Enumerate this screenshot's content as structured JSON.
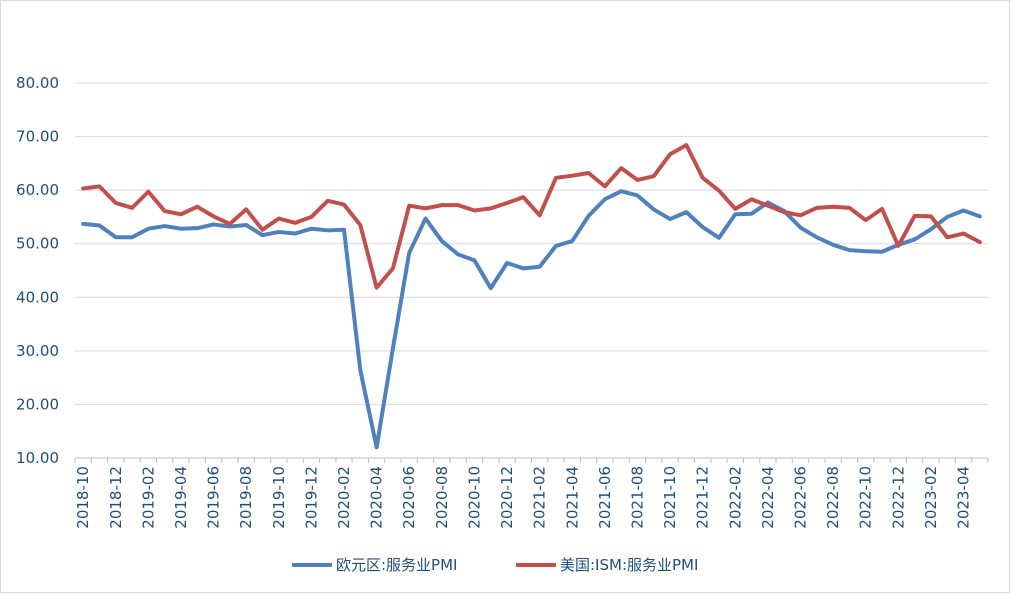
{
  "chart_data": {
    "type": "line",
    "title": "",
    "xlabel": "",
    "ylabel": "",
    "ylim": [
      10,
      80
    ],
    "y_ticks": [
      "10.00",
      "20.00",
      "30.00",
      "40.00",
      "50.00",
      "60.00",
      "70.00",
      "80.00"
    ],
    "x": [
      "2018-10",
      "2018-11",
      "2018-12",
      "2019-01",
      "2019-02",
      "2019-03",
      "2019-04",
      "2019-05",
      "2019-06",
      "2019-07",
      "2019-08",
      "2019-09",
      "2019-10",
      "2019-11",
      "2019-12",
      "2020-01",
      "2020-02",
      "2020-03",
      "2020-04",
      "2020-05",
      "2020-06",
      "2020-07",
      "2020-08",
      "2020-09",
      "2020-10",
      "2020-11",
      "2020-12",
      "2021-01",
      "2021-02",
      "2021-03",
      "2021-04",
      "2021-05",
      "2021-06",
      "2021-07",
      "2021-08",
      "2021-09",
      "2021-10",
      "2021-11",
      "2021-12",
      "2022-01",
      "2022-02",
      "2022-03",
      "2022-04",
      "2022-05",
      "2022-06",
      "2022-07",
      "2022-08",
      "2022-09",
      "2022-10",
      "2022-11",
      "2022-12",
      "2023-01",
      "2023-02",
      "2023-03",
      "2023-04",
      "2023-05"
    ],
    "x_tick_labels": [
      "2018-10",
      "2018-12",
      "2019-02",
      "2019-04",
      "2019-06",
      "2019-08",
      "2019-10",
      "2019-12",
      "2020-02",
      "2020-04",
      "2020-06",
      "2020-08",
      "2020-10",
      "2020-12",
      "2021-02",
      "2021-04",
      "2021-06",
      "2021-08",
      "2021-10",
      "2021-12",
      "2022-02",
      "2022-04",
      "2022-06",
      "2022-08",
      "2022-10",
      "2022-12",
      "2023-02",
      "2023-04"
    ],
    "series": [
      {
        "name": "欧元区:服务业PMI",
        "color": "#4f81bd",
        "values": [
          53.7,
          53.4,
          51.2,
          51.2,
          52.8,
          53.3,
          52.8,
          52.9,
          53.6,
          53.2,
          53.5,
          51.6,
          52.2,
          51.9,
          52.8,
          52.5,
          52.6,
          26.4,
          12.0,
          30.5,
          48.3,
          54.7,
          50.5,
          48.0,
          46.9,
          41.7,
          46.4,
          45.4,
          45.7,
          49.6,
          50.5,
          55.2,
          58.3,
          59.8,
          59.0,
          56.4,
          54.6,
          55.9,
          53.1,
          51.1,
          55.5,
          55.6,
          57.7,
          56.1,
          53.0,
          51.2,
          49.8,
          48.8,
          48.6,
          48.5,
          49.8,
          50.8,
          52.7,
          55.0,
          56.2,
          55.1
        ]
      },
      {
        "name": "美国:ISM:服务业PMI",
        "color": "#c0504d",
        "values": [
          60.3,
          60.7,
          57.6,
          56.7,
          59.7,
          56.1,
          55.5,
          56.9,
          55.1,
          53.7,
          56.4,
          52.6,
          54.7,
          53.9,
          55.0,
          58.0,
          57.3,
          53.5,
          41.8,
          45.4,
          57.1,
          56.6,
          57.2,
          57.2,
          56.2,
          56.6,
          57.6,
          58.7,
          55.3,
          62.3,
          62.7,
          63.2,
          60.7,
          64.1,
          61.9,
          62.6,
          66.7,
          68.4,
          62.3,
          59.9,
          56.5,
          58.3,
          57.1,
          55.9,
          55.3,
          56.7,
          56.9,
          56.7,
          54.4,
          56.5,
          49.6,
          55.2,
          55.1,
          51.2,
          51.9,
          50.3
        ]
      }
    ],
    "legend_position": "bottom-center"
  }
}
